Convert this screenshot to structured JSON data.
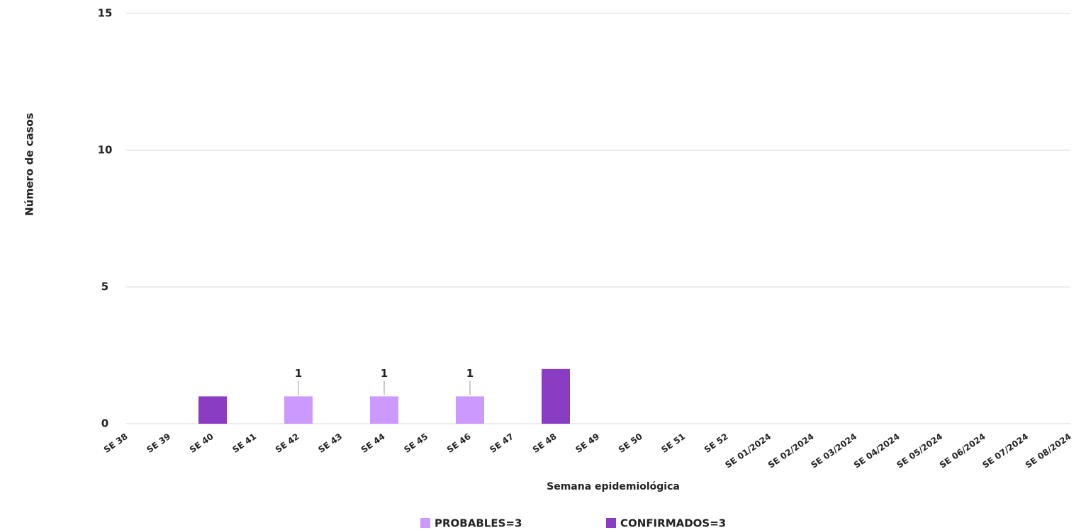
{
  "chart_data": {
    "type": "bar",
    "stacked": true,
    "y_label": "Número de casos",
    "x_label": "Semana epidemiológica",
    "categories": [
      "SE 38",
      "SE 39",
      "SE 40",
      "SE 41",
      "SE 42",
      "SE 43",
      "SE 44",
      "SE 45",
      "SE 46",
      "SE 47",
      "SE 48",
      "SE 49",
      "SE 50",
      "SE 51",
      "SE 52",
      "SE 01/2024",
      "SE 02/2024",
      "SE 03/2024",
      "SE 04/2024",
      "SE 05/2024",
      "SE 06/2024",
      "SE 07/2024",
      "SE 08/2024"
    ],
    "series": [
      {
        "name": "PROBABLES=3",
        "color": "#cc99ff",
        "values": [
          0,
          0,
          0,
          0,
          1,
          0,
          1,
          0,
          1,
          0,
          0,
          0,
          0,
          0,
          0,
          0,
          0,
          0,
          0,
          0,
          0,
          0,
          0
        ],
        "value_labels": [
          null,
          null,
          null,
          null,
          "1",
          null,
          "1",
          null,
          "1",
          null,
          null,
          null,
          null,
          null,
          null,
          null,
          null,
          null,
          null,
          null,
          null,
          null,
          null
        ]
      },
      {
        "name": "CONFIRMADOS=3",
        "color": "#8a3cc2",
        "values": [
          0,
          0,
          1,
          0,
          0,
          0,
          0,
          0,
          0,
          0,
          2,
          0,
          0,
          0,
          0,
          0,
          0,
          0,
          0,
          0,
          0,
          0,
          0
        ]
      }
    ],
    "ylim": [
      0,
      15
    ],
    "yticks": [
      0,
      5,
      10,
      15
    ],
    "grid": true,
    "legend": "bottom"
  }
}
